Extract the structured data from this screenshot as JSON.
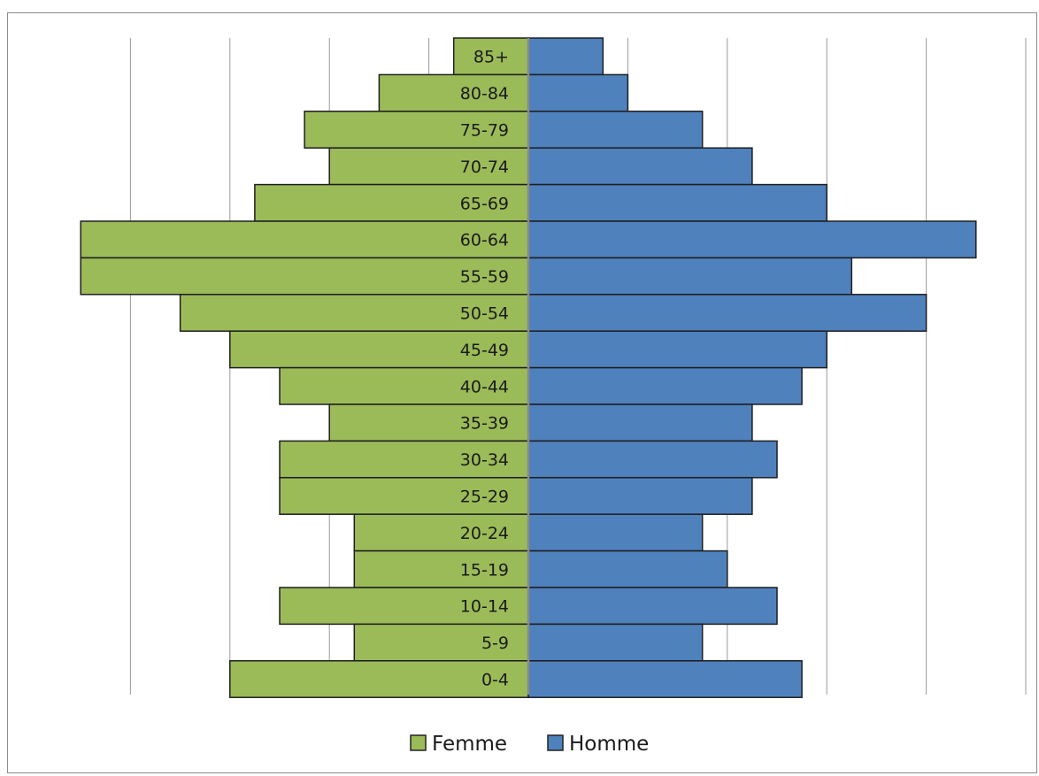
{
  "chart_data": {
    "type": "bar",
    "orientation": "horizontal",
    "subtype": "population-pyramid",
    "title": "",
    "xlabel": "",
    "ylabel": "",
    "categories": [
      "85+",
      "80-84",
      "75-79",
      "70-74",
      "65-69",
      "60-64",
      "55-59",
      "50-54",
      "45-49",
      "40-44",
      "35-39",
      "30-34",
      "25-29",
      "20-24",
      "15-19",
      "10-14",
      "5-9",
      "0-4"
    ],
    "series": [
      {
        "name": "Femme",
        "color": "#9bbb59",
        "side": "left",
        "values": [
          3,
          6,
          9,
          8,
          11,
          18,
          18,
          14,
          12,
          10,
          8,
          10,
          10,
          7,
          7,
          10,
          7,
          12
        ]
      },
      {
        "name": "Homme",
        "color": "#4f81bd",
        "side": "right",
        "values": [
          3,
          4,
          7,
          9,
          12,
          18,
          13,
          16,
          12,
          11,
          9,
          10,
          9,
          7,
          8,
          10,
          7,
          11
        ]
      }
    ],
    "xlim": [
      -20,
      20
    ],
    "grid": true,
    "tick_labels_shown": false,
    "legend": {
      "position": "bottom",
      "entries": [
        "Femme",
        "Homme"
      ]
    }
  }
}
